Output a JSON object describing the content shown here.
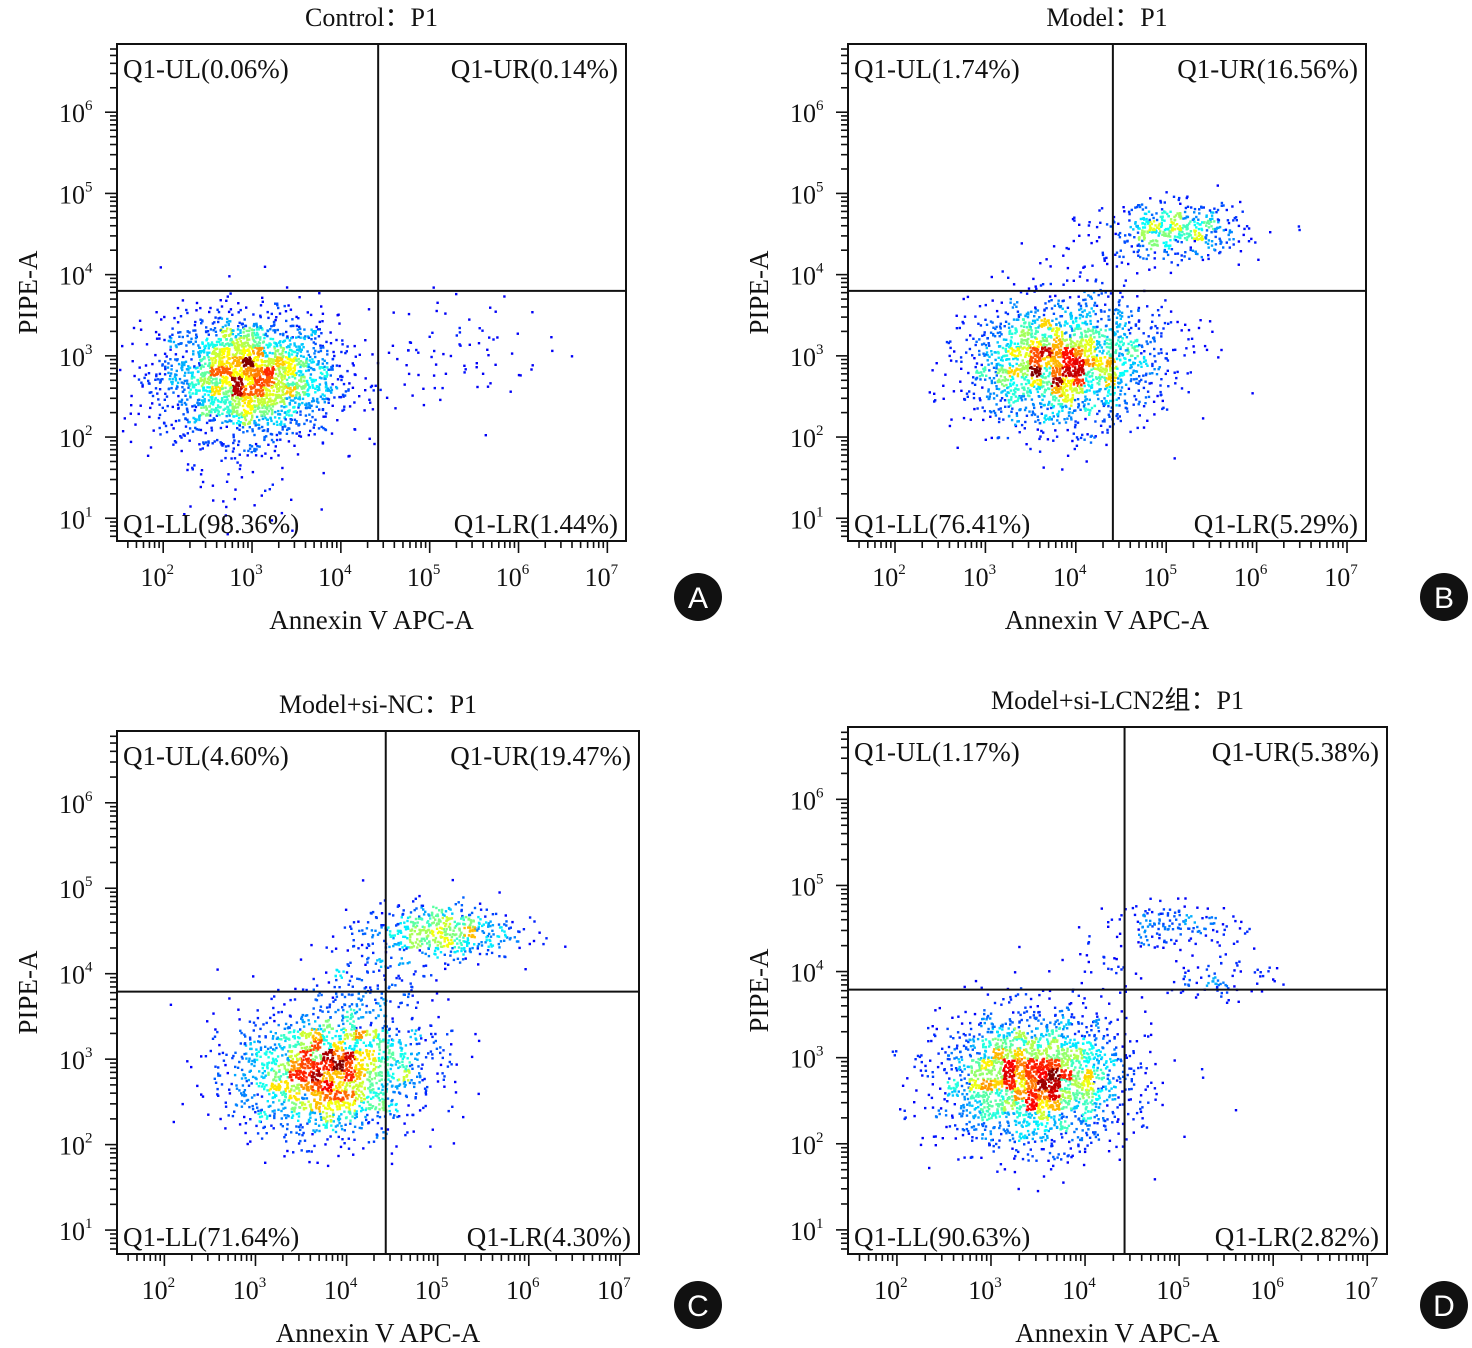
{
  "chart_data": [
    {
      "type": "scatter",
      "panel_letter": "A",
      "title": "Control：P1",
      "xlabel": "Annexin V APC-A",
      "ylabel": "PIPE-A",
      "x_scale": "log",
      "y_scale": "log",
      "xlim_log10": [
        1.48,
        7.21
      ],
      "ylim_log10": [
        0.72,
        6.84
      ],
      "x_ticks_exp": [
        2,
        3,
        4,
        5,
        6,
        7
      ],
      "y_ticks_exp": [
        1,
        2,
        3,
        4,
        5,
        6
      ],
      "gate_log10": {
        "x": 4.42,
        "y": 3.8
      },
      "quadrants": {
        "UL": "Q1-UL(0.06%)",
        "UR": "Q1-UR(0.14%)",
        "LL": "Q1-LL(98.36%)",
        "LR": "Q1-LR(1.44%)"
      },
      "populations": [
        {
          "center_log10": [
            2.95,
            2.75
          ],
          "spread_log10": [
            0.5,
            0.38
          ],
          "share": 0.95
        },
        {
          "center_log10": [
            5.3,
            3.1
          ],
          "spread_log10": [
            0.5,
            0.35
          ],
          "share": 0.03
        },
        {
          "center_log10": [
            2.8,
            1.6
          ],
          "spread_log10": [
            0.4,
            0.4
          ],
          "share": 0.02
        }
      ]
    },
    {
      "type": "scatter",
      "panel_letter": "B",
      "title": "Model：P1",
      "xlabel": "Annexin V APC-A",
      "ylabel": "PIPE-A",
      "x_scale": "log",
      "y_scale": "log",
      "xlim_log10": [
        1.48,
        7.21
      ],
      "ylim_log10": [
        0.72,
        6.84
      ],
      "x_ticks_exp": [
        2,
        3,
        4,
        5,
        6,
        7
      ],
      "y_ticks_exp": [
        1,
        2,
        3,
        4,
        5,
        6
      ],
      "gate_log10": {
        "x": 4.41,
        "y": 3.8
      },
      "quadrants": {
        "UL": "Q1-UL(1.74%)",
        "UR": "Q1-UR(16.56%)",
        "LL": "Q1-LL(76.41%)",
        "LR": "Q1-LR(5.29%)"
      },
      "populations": [
        {
          "center_log10": [
            3.8,
            2.9
          ],
          "spread_log10": [
            0.5,
            0.38
          ],
          "share": 0.76
        },
        {
          "center_log10": [
            5.1,
            4.55
          ],
          "spread_log10": [
            0.38,
            0.17
          ],
          "share": 0.17
        },
        {
          "center_log10": [
            4.7,
            3.2
          ],
          "spread_log10": [
            0.4,
            0.35
          ],
          "share": 0.05
        },
        {
          "center_log10": [
            4.3,
            4.1
          ],
          "spread_log10": [
            0.3,
            0.25
          ],
          "share": 0.02
        }
      ]
    },
    {
      "type": "scatter",
      "panel_letter": "C",
      "title": "Model+si-NC：P1",
      "xlabel": "Annexin V APC-A",
      "ylabel": "PIPE-A",
      "x_scale": "log",
      "y_scale": "log",
      "xlim_log10": [
        1.48,
        7.21
      ],
      "ylim_log10": [
        0.72,
        6.84
      ],
      "x_ticks_exp": [
        2,
        3,
        4,
        5,
        6,
        7
      ],
      "y_ticks_exp": [
        1,
        2,
        3,
        4,
        5,
        6
      ],
      "gate_log10": {
        "x": 4.43,
        "y": 3.79
      },
      "quadrants": {
        "UL": "Q1-UL(4.60%)",
        "UR": "Q1-UR(19.47%)",
        "LL": "Q1-LL(71.64%)",
        "LR": "Q1-LR(4.30%)"
      },
      "populations": [
        {
          "center_log10": [
            3.75,
            2.85
          ],
          "spread_log10": [
            0.5,
            0.38
          ],
          "share": 0.72
        },
        {
          "center_log10": [
            5.0,
            4.5
          ],
          "spread_log10": [
            0.42,
            0.17
          ],
          "share": 0.19
        },
        {
          "center_log10": [
            4.6,
            3.2
          ],
          "spread_log10": [
            0.35,
            0.35
          ],
          "share": 0.045
        },
        {
          "center_log10": [
            4.2,
            4.0
          ],
          "spread_log10": [
            0.3,
            0.25
          ],
          "share": 0.045
        }
      ]
    },
    {
      "type": "scatter",
      "panel_letter": "D",
      "title": "Model+si-LCN2组：P1",
      "xlabel": "Annexin V APC-A",
      "ylabel": "PIPE-A",
      "x_scale": "log",
      "y_scale": "log",
      "xlim_log10": [
        1.48,
        7.21
      ],
      "ylim_log10": [
        0.72,
        6.84
      ],
      "x_ticks_exp": [
        2,
        3,
        4,
        5,
        6,
        7
      ],
      "y_ticks_exp": [
        1,
        2,
        3,
        4,
        5,
        6
      ],
      "gate_log10": {
        "x": 4.42,
        "y": 3.79
      },
      "quadrants": {
        "UL": "Q1-UL(1.17%)",
        "UR": "Q1-UR(5.38%)",
        "LL": "Q1-LL(90.63%)",
        "LR": "Q1-LR(2.82%)"
      },
      "populations": [
        {
          "center_log10": [
            3.45,
            2.75
          ],
          "spread_log10": [
            0.5,
            0.38
          ],
          "share": 0.9
        },
        {
          "center_log10": [
            4.95,
            4.55
          ],
          "spread_log10": [
            0.35,
            0.13
          ],
          "share": 0.055
        },
        {
          "center_log10": [
            5.45,
            3.95
          ],
          "spread_log10": [
            0.3,
            0.15
          ],
          "share": 0.03
        },
        {
          "center_log10": [
            4.2,
            4.0
          ],
          "spread_log10": [
            0.3,
            0.25
          ],
          "share": 0.015
        }
      ]
    }
  ],
  "colors": {
    "density_low": "#0000c8",
    "density_mid": "#00ff80",
    "density_high": "#ff0000",
    "axis": "#111111",
    "badge": "#111111"
  }
}
